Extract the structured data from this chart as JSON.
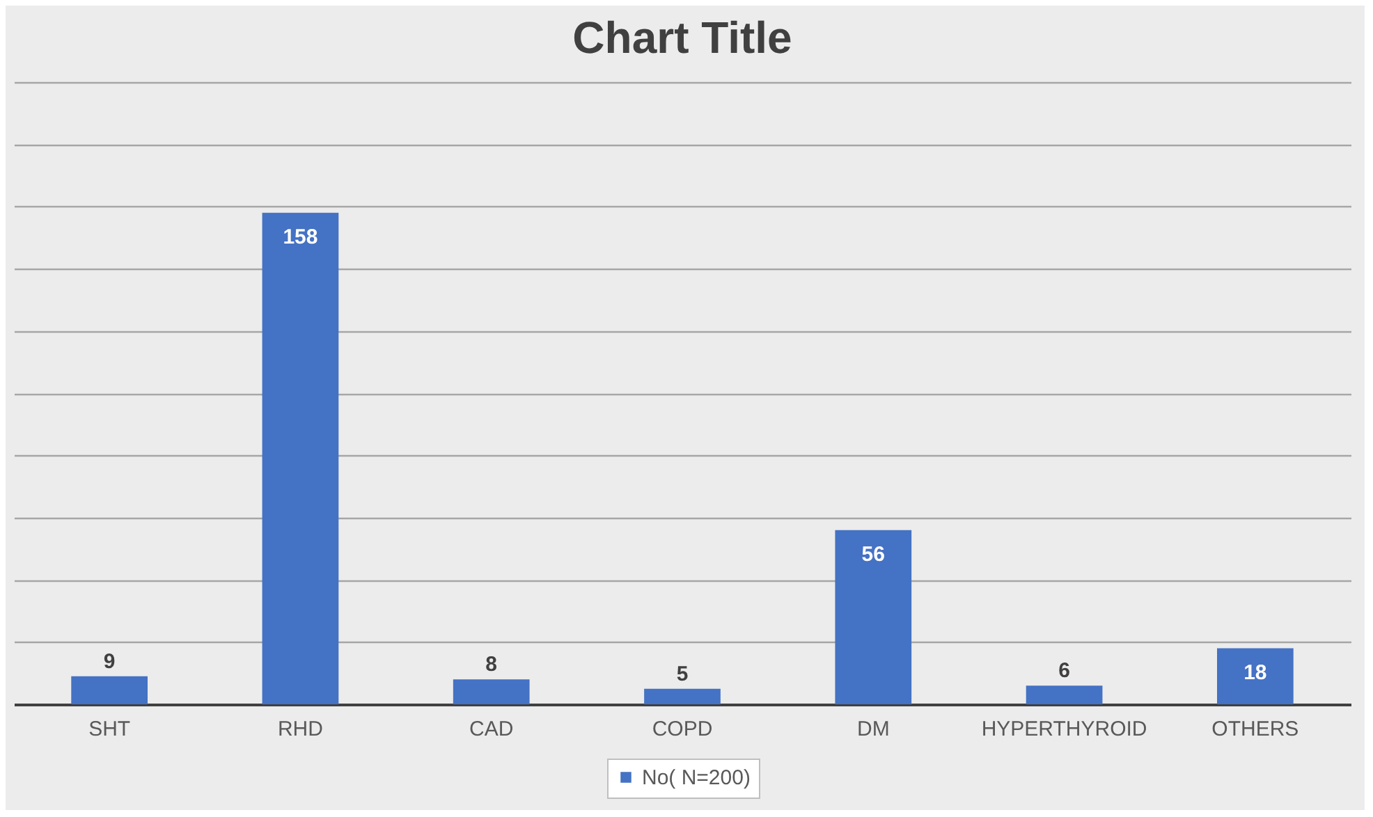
{
  "chart_data": {
    "type": "bar",
    "title": "Chart Title",
    "categories": [
      "SHT",
      "RHD",
      "CAD",
      "COPD",
      "DM",
      "HYPERTHYROID",
      "OTHERS"
    ],
    "series": [
      {
        "name": "No( N=200)",
        "color": "#4472c4",
        "values": [
          9,
          158,
          8,
          5,
          56,
          6,
          18
        ]
      }
    ],
    "ylim": [
      0,
      200
    ],
    "tick_labels": "x",
    "grid": "y",
    "data_labels": true,
    "legend": "bottom"
  }
}
